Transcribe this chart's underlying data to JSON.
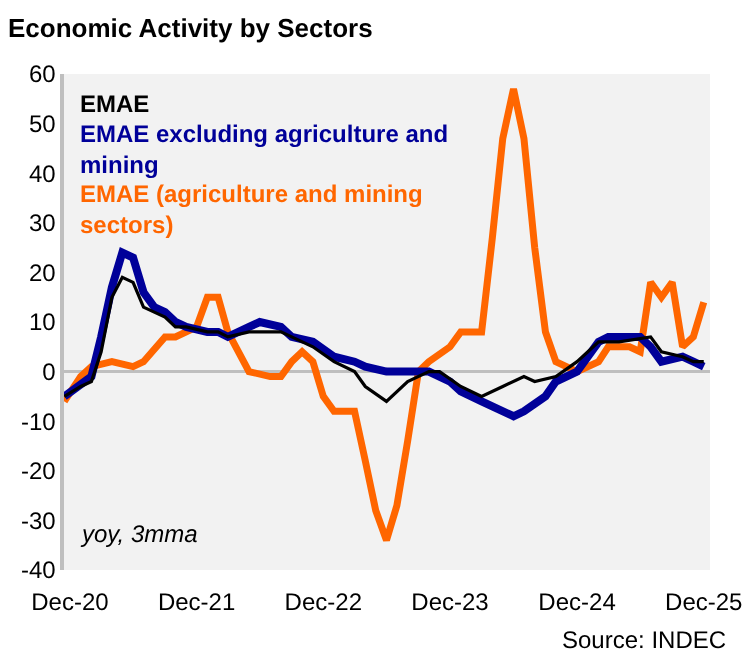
{
  "chart_data": {
    "type": "line",
    "title": "Economic Activity by Sectors",
    "annotations": [
      "yoy, 3mma",
      "Source: INDEC"
    ],
    "xlim": [
      "2020-11-14",
      "2025-12-19"
    ],
    "xticks": [
      {
        "value": "2020-12",
        "label": "Dec-20"
      },
      {
        "value": "2021-12",
        "label": "Dec-21"
      },
      {
        "value": "2022-12",
        "label": "Dec-22"
      },
      {
        "value": "2023-12",
        "label": "Dec-23"
      },
      {
        "value": "2024-12",
        "label": "Dec-24"
      },
      {
        "value": "2025-12",
        "label": "Dec-25"
      }
    ],
    "ylim": [
      -40,
      60
    ],
    "yticks": [
      -40,
      -30,
      -20,
      -10,
      0,
      10,
      20,
      30,
      40,
      50,
      60
    ],
    "legend": "top left",
    "ref_lines": [
      {
        "axis": "y",
        "value": 0,
        "color": "#bfbfbf"
      }
    ],
    "series": [
      {
        "name": "EMAE",
        "color": "#000000",
        "x": [
          "2020-11-15",
          "2021-01",
          "2021-02",
          "2021-03",
          "2021-04",
          "2021-05",
          "2021-06",
          "2021-07",
          "2021-08",
          "2021-09",
          "2021-10",
          "2021-11",
          "2022-01",
          "2022-02",
          "2022-03",
          "2022-05",
          "2022-06",
          "2022-08",
          "2022-09",
          "2022-11",
          "2023-01",
          "2023-03",
          "2023-04",
          "2023-06",
          "2023-08",
          "2023-10",
          "2023-11",
          "2024-01",
          "2024-03",
          "2024-05",
          "2024-07",
          "2024-08",
          "2024-10",
          "2024-12",
          "2025-02",
          "2025-04",
          "2025-07",
          "2025-08",
          "2025-10",
          "2025-11",
          "2025-12"
        ],
        "values": [
          -5,
          -3,
          -2,
          4,
          15,
          19,
          18,
          13,
          12,
          11,
          9,
          9,
          8,
          8,
          7,
          8,
          8,
          8,
          7,
          5,
          2,
          0,
          -3,
          -6,
          -2,
          0,
          0,
          -3,
          -5,
          -3,
          -1,
          -2,
          -1,
          2,
          6,
          6,
          7,
          4,
          3,
          2,
          2
        ]
      },
      {
        "name": "EMAE excluding agriculture and mining",
        "color": "#000099",
        "x": [
          "2020-11-15",
          "2021-02",
          "2021-03",
          "2021-04",
          "2021-05",
          "2021-06",
          "2021-07",
          "2021-08",
          "2021-09",
          "2021-10",
          "2021-11",
          "2022-01",
          "2022-02",
          "2022-03",
          "2022-05",
          "2022-06",
          "2022-08",
          "2022-09",
          "2022-11",
          "2023-01",
          "2023-03",
          "2023-04",
          "2023-06",
          "2023-08",
          "2023-10",
          "2023-12",
          "2024-01",
          "2024-03",
          "2024-06",
          "2024-07",
          "2024-09",
          "2024-10",
          "2024-12",
          "2025-02",
          "2025-03",
          "2025-05",
          "2025-06",
          "2025-07",
          "2025-08",
          "2025-10",
          "2025-11",
          "2025-12"
        ],
        "values": [
          -5,
          -1,
          7,
          17,
          24,
          23,
          16,
          13,
          12,
          10,
          9,
          8,
          8,
          7,
          9,
          10,
          9,
          7,
          6,
          3,
          2,
          1,
          0,
          0,
          0,
          -2,
          -4,
          -6,
          -9,
          -8,
          -5,
          -2,
          0,
          6,
          7,
          7,
          7,
          5,
          2,
          3,
          2,
          1
        ]
      },
      {
        "name": "EMAE (agriculture and mining sectors)",
        "color": "#ff6600",
        "x": [
          "2020-11-15",
          "2021-01",
          "2021-02",
          "2021-04",
          "2021-06",
          "2021-07",
          "2021-09",
          "2021-10",
          "2021-12",
          "2022-01",
          "2022-02",
          "2022-03",
          "2022-05",
          "2022-07",
          "2022-08",
          "2022-09",
          "2022-10",
          "2022-11",
          "2022-12",
          "2023-01",
          "2023-03",
          "2023-04",
          "2023-05",
          "2023-06",
          "2023-07",
          "2023-08",
          "2023-09",
          "2023-10",
          "2023-12",
          "2024-01",
          "2024-03",
          "2024-04",
          "2024-05",
          "2024-06",
          "2024-07",
          "2024-08",
          "2024-09",
          "2024-10",
          "2024-12",
          "2025-02",
          "2025-03",
          "2025-05",
          "2025-06",
          "2025-07",
          "2025-08",
          "2025-09",
          "2025-10",
          "2025-11",
          "2025-12"
        ],
        "values": [
          -6,
          -1,
          1,
          2,
          1,
          2,
          7,
          7,
          9,
          15,
          15,
          8,
          0,
          -1,
          -1,
          2,
          4,
          2,
          -5,
          -8,
          -8,
          -18,
          -28,
          -34,
          -27,
          -14,
          0,
          2,
          5,
          8,
          8,
          27,
          47,
          57,
          47,
          25,
          8,
          2,
          0,
          2,
          5,
          5,
          4,
          18,
          15,
          18,
          5,
          7,
          14
        ]
      }
    ]
  }
}
